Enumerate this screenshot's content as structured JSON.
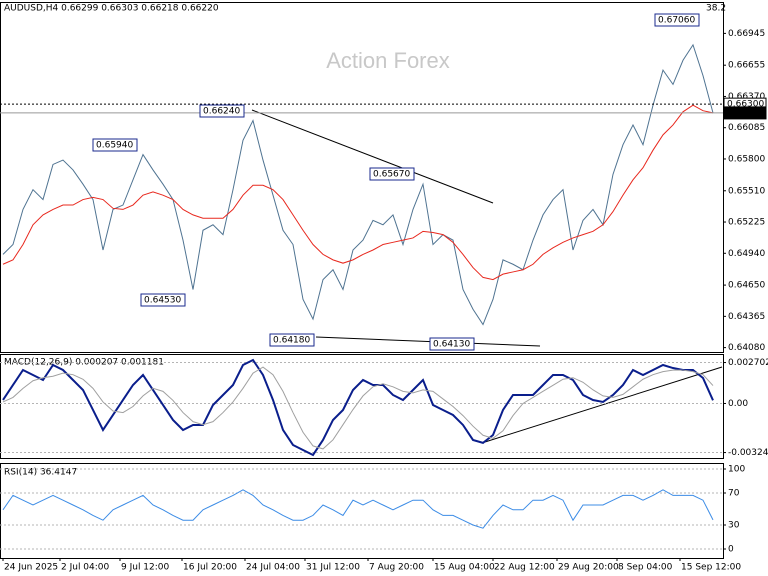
{
  "chart_data": [
    {
      "type": "line",
      "title": "AUDUSD,H4  0.66299 0.66303 0.66218 0.66220",
      "watermark": "Action Forex",
      "level_label": "38.2",
      "xlim": [
        -0.3,
        72
      ],
      "ylim": [
        0.6404,
        0.6714
      ],
      "yticks": [
        {
          "value": 0.6408,
          "label": "0.64080"
        },
        0.64365,
        {
          "value": 0.6465,
          "label": "0.64650"
        },
        {
          "value": 0.6494,
          "label": "0.64940"
        },
        0.65225,
        {
          "value": 0.6551,
          "label": "0.65510"
        },
        {
          "value": 0.658,
          "label": "0.65800"
        },
        0.66085,
        {
          "value": 0.6637,
          "label": "0.66370"
        },
        0.66655,
        0.66945
      ],
      "series": [
        {
          "color": "#4f7391",
          "values": [
            0.6493,
            0.6502,
            0.6534,
            0.6552,
            0.6543,
            0.6575,
            0.6579,
            0.657,
            0.6557,
            0.6543,
            0.6497,
            0.6534,
            0.6538,
            0.6561,
            0.6584,
            0.657,
            0.6557,
            0.6543,
            0.6506,
            0.6461,
            0.6515,
            0.652,
            0.6511,
            0.6552,
            0.6597,
            0.6615,
            0.6579,
            0.6547,
            0.6515,
            0.6502,
            0.6452,
            0.6434,
            0.647,
            0.6479,
            0.6461,
            0.6497,
            0.6506,
            0.6524,
            0.652,
            0.6529,
            0.6502,
            0.6534,
            0.6557,
            0.6502,
            0.6511,
            0.6506,
            0.6461,
            0.6443,
            0.6429,
            0.6452,
            0.6488,
            0.6484,
            0.6479,
            0.6506,
            0.6529,
            0.6543,
            0.6552,
            0.6497,
            0.6524,
            0.6534,
            0.652,
            0.6566,
            0.6593,
            0.6611,
            0.6593,
            0.6629,
            0.6661,
            0.6648,
            0.667,
            0.6684,
            0.6656,
            0.6622
          ]
        },
        {
          "color": "#e8281e",
          "values": [
            0.6484,
            0.6488,
            0.6502,
            0.652,
            0.6529,
            0.6534,
            0.6538,
            0.6538,
            0.6543,
            0.6545,
            0.6543,
            0.6535,
            0.6534,
            0.6538,
            0.6547,
            0.655,
            0.6547,
            0.6543,
            0.6534,
            0.6529,
            0.6526,
            0.6526,
            0.6526,
            0.6534,
            0.6547,
            0.6556,
            0.6556,
            0.6552,
            0.6543,
            0.6529,
            0.6515,
            0.6502,
            0.6493,
            0.6488,
            0.6485,
            0.6488,
            0.6493,
            0.6497,
            0.6502,
            0.6504,
            0.6506,
            0.6508,
            0.6514,
            0.6513,
            0.6511,
            0.6504,
            0.6493,
            0.6481,
            0.6472,
            0.647,
            0.6475,
            0.6477,
            0.6479,
            0.6484,
            0.6493,
            0.6499,
            0.6504,
            0.6508,
            0.6511,
            0.6514,
            0.652,
            0.6532,
            0.6547,
            0.6561,
            0.6572,
            0.6588,
            0.6602,
            0.6611,
            0.6623,
            0.6629,
            0.6624,
            0.6622
          ]
        }
      ],
      "price_lines": [
        {
          "value": 0.663,
          "label": "0.66300"
        },
        {
          "value": 0.6622,
          "label": "0.66220"
        }
      ],
      "annotations": [
        "0.67060",
        "0.66240",
        "0.65940",
        "0.65670",
        "0.64530",
        "0.64180",
        "0.64130"
      ]
    },
    {
      "type": "line",
      "title": "MACD(12,26,9) 0.000207 0.001181",
      "xlim": [
        -0.3,
        72
      ],
      "ylim": [
        -0.0036,
        0.0032
      ],
      "yticks": [
        -0.003241,
        {
          "value": 0,
          "label": "0.00"
        },
        0.002702
      ],
      "series": [
        {
          "color": "#0a1e8c",
          "values": [
            0.00023,
            0.00122,
            0.00221,
            0.00188,
            0.00155,
            0.00254,
            0.00221,
            0.00155,
            0.00089,
            -0.00043,
            -0.00175,
            -0.00076,
            0.00023,
            0.00122,
            0.00188,
            0.00089,
            -0.0001,
            -0.00109,
            -0.00175,
            -0.00142,
            -0.00142,
            -0.0001,
            0.00056,
            0.00122,
            0.00254,
            0.00287,
            0.00188,
            0.00023,
            -0.00175,
            -0.00274,
            -0.00307,
            -0.0034,
            -0.00241,
            -0.00109,
            -0.00043,
            0.00089,
            0.00155,
            0.00122,
            0.00122,
            0.00056,
            0.00023,
            0.00089,
            0.00155,
            -0.0001,
            -0.00043,
            -0.00076,
            -0.00142,
            -0.00241,
            -0.0026,
            -0.00208,
            -0.00043,
            0.00056,
            0.00056,
            0.00056,
            0.00122,
            0.00188,
            0.00188,
            0.00155,
            0.00056,
            0.00023,
            0.0001,
            0.00056,
            0.00122,
            0.00221,
            0.00188,
            0.00221,
            0.00254,
            0.00234,
            0.00221,
            0.00221,
            0.00168,
            0.000207
          ]
        },
        {
          "color": "#a0a0a0",
          "values": [
            0.0001,
            0.0004,
            0.001,
            0.0015,
            0.0017,
            0.0018,
            0.002,
            0.0019,
            0.0016,
            0.001,
            0.0001,
            -0.0005,
            -0.0006,
            -0.0002,
            0.0005,
            0.001,
            0.0008,
            0.0002,
            -0.0006,
            -0.0012,
            -0.0014,
            -0.0012,
            -0.0006,
            0.0001,
            0.001,
            0.002,
            0.0024,
            0.0019,
            0.0008,
            -0.0006,
            -0.0019,
            -0.0028,
            -0.003,
            -0.0024,
            -0.0014,
            -0.0004,
            0.0005,
            0.0011,
            0.0013,
            0.0011,
            0.0008,
            0.0007,
            0.0009,
            0.0008,
            0.0003,
            -0.0002,
            -0.0008,
            -0.0015,
            -0.0021,
            -0.0023,
            -0.0018,
            -0.0008,
            0,
            0.0004,
            0.0008,
            0.0012,
            0.0016,
            0.0017,
            0.0014,
            0.0009,
            0.0005,
            0.0004,
            0.0006,
            0.0011,
            0.0016,
            0.0019,
            0.0021,
            0.0022,
            0.0022,
            0.0021,
            0.0019,
            0.001181
          ]
        }
      ]
    },
    {
      "type": "line",
      "title": "RSI(14) 36.4147",
      "xlim": [
        -0.3,
        72
      ],
      "ylim": [
        -11.25,
        107.5
      ],
      "yticks": [
        0,
        30,
        70,
        100
      ],
      "series": [
        {
          "color": "#3c8ce6",
          "values": [
            49,
            67,
            61,
            55,
            61,
            67,
            61,
            55,
            49,
            42,
            36,
            49,
            55,
            61,
            67,
            55,
            49,
            42,
            36,
            36,
            49,
            55,
            61,
            67,
            74,
            67,
            55,
            49,
            42,
            36,
            36,
            42,
            55,
            49,
            42,
            61,
            55,
            61,
            55,
            49,
            55,
            61,
            61,
            49,
            42,
            42,
            36,
            30,
            26,
            42,
            55,
            49,
            49,
            61,
            61,
            67,
            61,
            36,
            55,
            55,
            55,
            61,
            67,
            67,
            61,
            67,
            74,
            67,
            67,
            67,
            61,
            36.4147
          ]
        }
      ],
      "xticks": [
        {
          "value": 0,
          "label": "24 Jun 2025"
        },
        {
          "value": 5.7,
          "label": "2 Jul 04:00"
        },
        {
          "value": 11.7,
          "label": "9 Jul 12:00"
        },
        {
          "value": 17.9,
          "label": "16 Jul 20:00"
        },
        {
          "value": 24.2,
          "label": "24 Jul 04:00"
        },
        {
          "value": 30.2,
          "label": "31 Jul 12:00"
        },
        {
          "value": 36.5,
          "label": "7 Aug 20:00"
        },
        {
          "value": 43,
          "label": "15 Aug 04:00"
        },
        {
          "value": 49,
          "label": "22 Aug 12:00"
        },
        {
          "value": 55.4,
          "label": "29 Aug 20:00"
        },
        {
          "value": 61.4,
          "label": "8 Sep 04:00"
        },
        {
          "value": 67.7,
          "label": "15 Sep 12:00"
        }
      ]
    }
  ]
}
